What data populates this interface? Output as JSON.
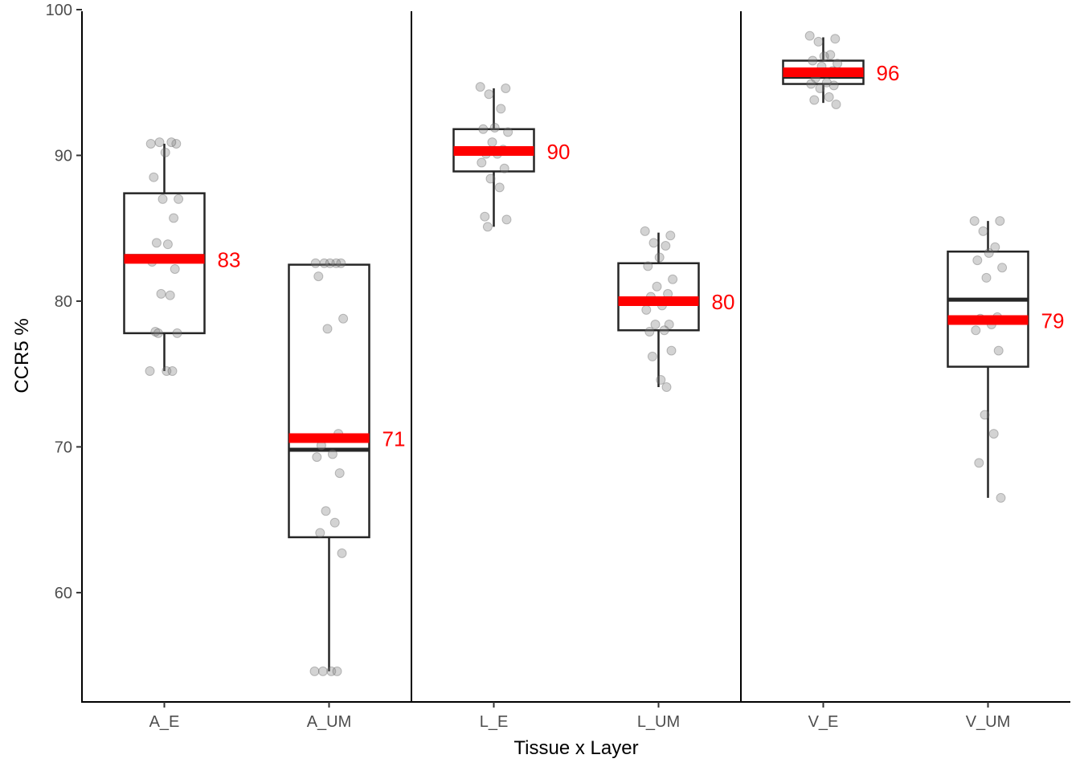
{
  "chart_data": {
    "type": "box",
    "xlabel": "Tissue x Layer",
    "ylabel": "CCR5 %",
    "ylim": [
      52.5,
      100
    ],
    "yticks": [
      60,
      70,
      80,
      90,
      100
    ],
    "categories": [
      "A_E",
      "A_UM",
      "L_E",
      "L_UM",
      "V_E",
      "V_UM"
    ],
    "group_separators_after": [
      2,
      4
    ],
    "colors": {
      "mean": "#ff0000",
      "box": "#262626",
      "points": "#808080"
    },
    "boxes": [
      {
        "category": "A_E",
        "q1": 77.8,
        "median": 83.1,
        "q3": 87.4,
        "whisker_low": 75.2,
        "whisker_high": 90.8,
        "mean": 82.9,
        "mean_label": "83"
      },
      {
        "category": "A_UM",
        "q1": 63.8,
        "median": 69.8,
        "q3": 82.5,
        "whisker_low": 54.6,
        "whisker_high": 82.6,
        "mean": 70.6,
        "mean_label": "71"
      },
      {
        "category": "L_E",
        "q1": 88.9,
        "median": 90.3,
        "q3": 91.8,
        "whisker_low": 85.1,
        "whisker_high": 94.6,
        "mean": 90.3,
        "mean_label": "90"
      },
      {
        "category": "L_UM",
        "q1": 78.0,
        "median": 80.0,
        "q3": 82.6,
        "whisker_low": 74.1,
        "whisker_high": 84.7,
        "mean": 80.0,
        "mean_label": "80"
      },
      {
        "category": "V_E",
        "q1": 94.9,
        "median": 95.4,
        "q3": 96.5,
        "whisker_low": 93.6,
        "whisker_high": 98.1,
        "mean": 95.7,
        "mean_label": "96"
      },
      {
        "category": "V_UM",
        "q1": 75.5,
        "median": 80.1,
        "q3": 83.4,
        "whisker_low": 66.5,
        "whisker_high": 85.5,
        "mean": 78.7,
        "mean_label": "79"
      }
    ],
    "points": [
      {
        "category": "A_E",
        "values": [
          90.8,
          90.8,
          90.9,
          90.9,
          90.2,
          88.5,
          87.0,
          87.0,
          85.7,
          84.0,
          83.9,
          82.7,
          82.2,
          80.5,
          80.4,
          77.9,
          77.8,
          77.8,
          75.2,
          75.2,
          75.2
        ]
      },
      {
        "category": "A_UM",
        "values": [
          82.6,
          82.6,
          82.6,
          82.6,
          82.6,
          81.7,
          78.8,
          78.1,
          70.9,
          70.1,
          69.5,
          69.3,
          68.2,
          65.6,
          64.8,
          64.1,
          62.7,
          54.6,
          54.6,
          54.6,
          54.6
        ]
      },
      {
        "category": "L_E",
        "values": [
          94.7,
          94.6,
          94.2,
          93.2,
          91.9,
          91.8,
          91.6,
          90.9,
          90.4,
          90.1,
          90.1,
          89.5,
          89.1,
          88.4,
          87.8,
          85.8,
          85.6,
          85.1
        ]
      },
      {
        "category": "L_UM",
        "values": [
          84.8,
          84.5,
          84.0,
          83.8,
          83.0,
          82.4,
          81.5,
          81.0,
          80.5,
          80.3,
          79.7,
          79.4,
          78.4,
          78.4,
          78.0,
          77.9,
          76.6,
          76.2,
          74.6,
          74.1
        ]
      },
      {
        "category": "V_E",
        "values": [
          98.2,
          98.0,
          97.8,
          96.9,
          96.8,
          96.5,
          96.3,
          96.1,
          95.8,
          95.3,
          95.0,
          94.9,
          94.8,
          94.6,
          94.0,
          93.8,
          93.5
        ]
      },
      {
        "category": "V_UM",
        "values": [
          85.5,
          85.5,
          84.8,
          83.7,
          83.3,
          82.8,
          82.3,
          81.6,
          78.9,
          78.8,
          78.4,
          78.0,
          76.6,
          72.2,
          70.9,
          68.9,
          66.5
        ]
      }
    ]
  }
}
